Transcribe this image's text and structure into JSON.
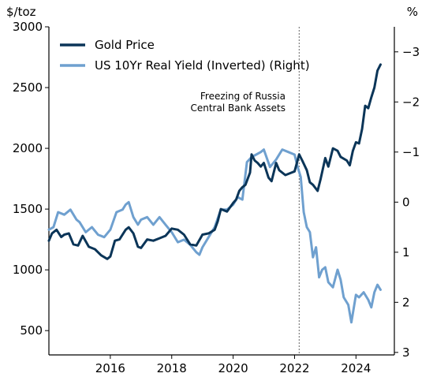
{
  "chart_data": {
    "type": "line",
    "left_unit": "$/toz",
    "right_unit": "%",
    "x_ticks": [
      "2016",
      "2018",
      "2020",
      "2022",
      "2024"
    ],
    "x_range": [
      2014.0,
      2025.25
    ],
    "left_ticks": [
      "500",
      "1000",
      "1500",
      "2000",
      "2500",
      "3000"
    ],
    "left_ylim": [
      300,
      3000
    ],
    "right_ticks": [
      "−3",
      "−2",
      "−1",
      "0",
      "1",
      "2",
      "3"
    ],
    "right_ylim_inverted": [
      3.05,
      -3.5
    ],
    "legend_position": "top-left",
    "annotation": {
      "lines": [
        "Freezing of Russia",
        "Central Bank Assets"
      ],
      "x": 2022.15
    },
    "series": [
      {
        "name": "Gold Price",
        "axis": "left",
        "color": "#0b3558",
        "x": [
          2014.0,
          2014.1,
          2014.25,
          2014.4,
          2014.5,
          2014.65,
          2014.8,
          2014.95,
          2015.1,
          2015.3,
          2015.5,
          2015.7,
          2015.9,
          2016.0,
          2016.15,
          2016.3,
          2016.5,
          2016.6,
          2016.75,
          2016.9,
          2017.0,
          2017.2,
          2017.4,
          2017.6,
          2017.8,
          2018.0,
          2018.2,
          2018.4,
          2018.6,
          2018.8,
          2019.0,
          2019.2,
          2019.4,
          2019.5,
          2019.6,
          2019.8,
          2020.0,
          2020.1,
          2020.2,
          2020.3,
          2020.4,
          2020.55,
          2020.6,
          2020.7,
          2020.8,
          2020.9,
          2021.0,
          2021.15,
          2021.25,
          2021.4,
          2021.5,
          2021.7,
          2021.9,
          2022.0,
          2022.15,
          2022.25,
          2022.4,
          2022.5,
          2022.6,
          2022.75,
          2022.85,
          2023.0,
          2023.1,
          2023.25,
          2023.4,
          2023.5,
          2023.7,
          2023.8,
          2023.9,
          2024.0,
          2024.1,
          2024.2,
          2024.3,
          2024.4,
          2024.5,
          2024.6,
          2024.7,
          2024.8
        ],
        "values": [
          1240,
          1300,
          1330,
          1270,
          1290,
          1300,
          1210,
          1200,
          1280,
          1190,
          1170,
          1120,
          1090,
          1110,
          1240,
          1250,
          1330,
          1350,
          1300,
          1190,
          1180,
          1250,
          1240,
          1260,
          1280,
          1340,
          1330,
          1290,
          1210,
          1200,
          1290,
          1300,
          1330,
          1400,
          1500,
          1480,
          1550,
          1580,
          1650,
          1680,
          1700,
          1800,
          1950,
          1900,
          1880,
          1850,
          1880,
          1760,
          1730,
          1880,
          1820,
          1780,
          1800,
          1810,
          1950,
          1900,
          1820,
          1720,
          1700,
          1650,
          1750,
          1920,
          1850,
          2000,
          1980,
          1930,
          1900,
          1860,
          1980,
          2050,
          2040,
          2160,
          2350,
          2330,
          2420,
          2500,
          2640,
          2690
        ]
      },
      {
        "name": "US 10Yr Real Yield (Inverted) (Right)",
        "axis": "right",
        "color": "#6fa0cf",
        "x": [
          2014.0,
          2014.15,
          2014.3,
          2014.5,
          2014.7,
          2014.9,
          2015.0,
          2015.2,
          2015.4,
          2015.6,
          2015.8,
          2016.0,
          2016.2,
          2016.4,
          2016.5,
          2016.6,
          2016.75,
          2016.9,
          2017.0,
          2017.2,
          2017.4,
          2017.6,
          2017.8,
          2018.0,
          2018.2,
          2018.4,
          2018.6,
          2018.8,
          2018.9,
          2019.0,
          2019.2,
          2019.4,
          2019.6,
          2019.8,
          2020.0,
          2020.15,
          2020.3,
          2020.45,
          2020.6,
          2020.75,
          2020.9,
          2021.0,
          2021.2,
          2021.4,
          2021.6,
          2021.8,
          2022.0,
          2022.1,
          2022.2,
          2022.3,
          2022.4,
          2022.5,
          2022.6,
          2022.7,
          2022.8,
          2022.9,
          2023.0,
          2023.1,
          2023.25,
          2023.4,
          2023.5,
          2023.6,
          2023.75,
          2023.85,
          2024.0,
          2024.1,
          2024.25,
          2024.4,
          2024.5,
          2024.6,
          2024.7,
          2024.8
        ],
        "values": [
          0.55,
          0.5,
          0.2,
          0.25,
          0.15,
          0.35,
          0.4,
          0.6,
          0.5,
          0.65,
          0.7,
          0.55,
          0.2,
          0.15,
          0.05,
          0.0,
          0.3,
          0.45,
          0.35,
          0.3,
          0.45,
          0.3,
          0.45,
          0.6,
          0.8,
          0.75,
          0.85,
          1.0,
          1.05,
          0.9,
          0.7,
          0.5,
          0.15,
          0.15,
          0.05,
          -0.1,
          -0.05,
          -0.8,
          -0.9,
          -0.95,
          -1.0,
          -1.05,
          -0.7,
          -0.85,
          -1.05,
          -1.0,
          -0.95,
          -0.7,
          -0.5,
          0.2,
          0.5,
          0.6,
          1.1,
          0.9,
          1.5,
          1.35,
          1.3,
          1.6,
          1.7,
          1.35,
          1.55,
          1.9,
          2.05,
          2.4,
          1.85,
          1.9,
          1.8,
          1.95,
          2.1,
          1.8,
          1.65,
          1.75
        ]
      }
    ]
  }
}
